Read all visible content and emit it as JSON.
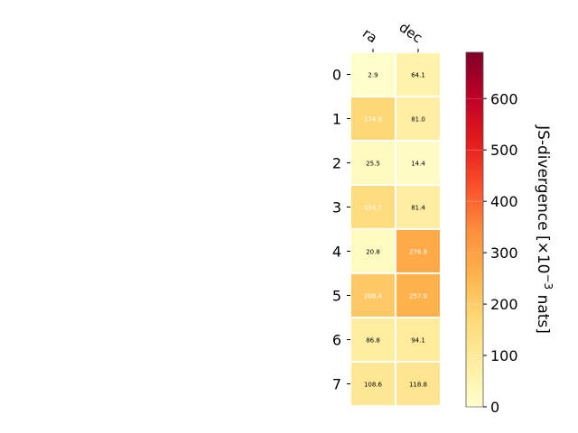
{
  "chart_data": {
    "type": "heatmap",
    "columns": [
      "ra",
      "dec"
    ],
    "rows": [
      "0",
      "1",
      "2",
      "3",
      "4",
      "5",
      "6",
      "7"
    ],
    "values": [
      [
        2.9,
        64.1
      ],
      [
        174.9,
        81.0
      ],
      [
        25.5,
        14.4
      ],
      [
        154.7,
        81.4
      ],
      [
        20.8,
        276.9
      ],
      [
        208.4,
        257.9
      ],
      [
        86.8,
        94.1
      ],
      [
        108.6,
        118.8
      ]
    ],
    "cell_labels": [
      [
        "2.9",
        "64.1"
      ],
      [
        "174.9",
        "81.0"
      ],
      [
        "25.5",
        "14.4"
      ],
      [
        "154.7",
        "81.4"
      ],
      [
        "20.8",
        "276.9"
      ],
      [
        "208.4",
        "257.9"
      ],
      [
        "86.8",
        "94.1"
      ],
      [
        "108.6",
        "118.8"
      ]
    ],
    "colorbar": {
      "label_main": "JS-divergence [×10",
      "label_exp": "−3",
      "label_unit": " nats]",
      "range": [
        0,
        690
      ],
      "ticks": [
        0,
        100,
        200,
        300,
        400,
        500,
        600
      ],
      "tick_labels": [
        "0",
        "100",
        "200",
        "300",
        "400",
        "500",
        "600"
      ],
      "colormap": "YlOrRd",
      "colors": [
        "#ffffcc",
        "#ffeda0",
        "#fed976",
        "#feb24c",
        "#fd8d3c",
        "#fc4e2a",
        "#e31a1c",
        "#bd0026",
        "#800026"
      ]
    },
    "light_text_threshold": 150,
    "grid": false
  }
}
